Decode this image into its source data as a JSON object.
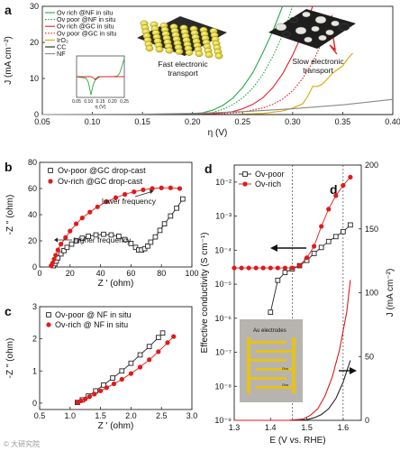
{
  "watermark": "© 大研究院",
  "chart_data": [
    {
      "id": "a",
      "panel_label": "a",
      "type": "line",
      "xlabel": "η (V)",
      "ylabel": "J (mA cm⁻²)",
      "xlim": [
        0.05,
        0.4
      ],
      "ylim": [
        0,
        30
      ],
      "xticks": [
        "0.05",
        "0.10",
        "0.15",
        "0.20",
        "0.25",
        "0.30",
        "0.35",
        "0.40"
      ],
      "yticks": [
        "0",
        "10",
        "20",
        "30"
      ],
      "legend_position": "top-left",
      "series": [
        {
          "name": "Ov rich  @NF in situ",
          "color": "#2aa84a",
          "dash": "solid",
          "x": [
            0.05,
            0.17,
            0.19,
            0.21,
            0.22,
            0.23,
            0.24,
            0.25,
            0.26,
            0.27,
            0.28,
            0.29
          ],
          "y": [
            0,
            0,
            0.1,
            0.5,
            1.2,
            2.5,
            4.5,
            7.5,
            11.5,
            17,
            23,
            30
          ]
        },
        {
          "name": "Ov poor  @NF in situ",
          "color": "#2aa84a",
          "dash": "dot",
          "x": [
            0.05,
            0.18,
            0.2,
            0.22,
            0.23,
            0.24,
            0.25,
            0.26,
            0.27,
            0.28,
            0.29,
            0.3
          ],
          "y": [
            0,
            0,
            0.1,
            0.6,
            1.4,
            2.7,
            4.6,
            7.3,
            11,
            16,
            22,
            30
          ]
        },
        {
          "name": "Ov rich  @GC in situ",
          "color": "#e02020",
          "dash": "solid",
          "x": [
            0.05,
            0.2,
            0.22,
            0.24,
            0.25,
            0.26,
            0.27,
            0.28,
            0.29,
            0.3,
            0.31,
            0.32
          ],
          "y": [
            0,
            0,
            0.2,
            0.8,
            1.6,
            2.8,
            4.6,
            7.4,
            11.3,
            16.5,
            22.7,
            30
          ]
        },
        {
          "name": "Ov poor  @GC in situ",
          "color": "#e02020",
          "dash": "dot",
          "x": [
            0.05,
            0.21,
            0.23,
            0.25,
            0.27,
            0.28,
            0.29,
            0.3,
            0.31,
            0.32,
            0.33,
            0.34
          ],
          "y": [
            0,
            0,
            0.2,
            0.7,
            1.8,
            2.8,
            4.3,
            6.6,
            10,
            14.5,
            20.5,
            28
          ]
        },
        {
          "name": "IrO₂",
          "color": "#d9a800",
          "dash": "solid",
          "x": [
            0.05,
            0.24,
            0.27,
            0.29,
            0.3,
            0.31,
            0.315,
            0.32,
            0.325,
            0.33,
            0.34,
            0.35,
            0.355,
            0.36
          ],
          "y": [
            0,
            0,
            0.3,
            1,
            1.8,
            3,
            5,
            7.8,
            7.8,
            8.5,
            11.5,
            13.5,
            15.5,
            17
          ]
        },
        {
          "name": "CC",
          "color": "#1c1c1c",
          "dash": "solid",
          "x": [
            0.05,
            0.4
          ],
          "y": [
            0,
            0
          ]
        },
        {
          "name": "NF",
          "color": "#888888",
          "dash": "solid",
          "x": [
            0.05,
            0.15,
            0.2,
            0.25,
            0.3,
            0.35,
            0.4
          ],
          "y": [
            0,
            0.1,
            0.3,
            0.8,
            1.6,
            2.7,
            4.2
          ]
        }
      ],
      "inset": {
        "xlim": [
          0.05,
          0.25
        ],
        "xticks": [
          "0.05",
          "0.10",
          "0.15",
          "0.20",
          "0.25"
        ],
        "xlabel": "η (V)",
        "series": [
          {
            "color": "#2aa84a",
            "x": [
              0.05,
              0.09,
              0.1,
              0.11,
              0.12,
              0.13,
              0.14,
              0.16,
              0.2,
              0.22,
              0.23,
              0.24,
              0.25
            ],
            "y": [
              0,
              -0.3,
              -1.2,
              -3.5,
              -1.5,
              -0.4,
              0,
              0,
              0,
              0.1,
              0.6,
              2,
              3.5
            ]
          },
          {
            "color": "#e02020",
            "x": [
              0.05,
              0.11,
              0.12,
              0.13,
              0.14,
              0.15,
              0.2,
              0.25
            ],
            "y": [
              0,
              0,
              -0.2,
              -0.6,
              -0.2,
              0,
              0,
              0
            ]
          }
        ]
      },
      "annotations": [
        "Fast electronic transport",
        "Slow electronic transport"
      ]
    },
    {
      "id": "b",
      "panel_label": "b",
      "type": "scatter",
      "xlabel": "Z ' (ohm)",
      "ylabel": "-Z \" (ohm)",
      "xlim": [
        0,
        100
      ],
      "ylim": [
        0,
        80
      ],
      "xticks": [
        "0",
        "20",
        "40",
        "60",
        "80",
        "100"
      ],
      "yticks": [
        "0",
        "20",
        "40",
        "60",
        "80"
      ],
      "legend_position": "top",
      "series": [
        {
          "name": "Ov-poor @GC drop-cast",
          "color": "#222222",
          "marker": "open-square",
          "x": [
            9,
            10,
            11,
            12,
            14,
            16,
            18,
            21,
            24,
            28,
            32,
            37,
            42,
            47,
            52,
            56,
            60,
            63,
            65,
            67,
            69,
            71,
            73,
            76,
            79,
            82,
            86,
            90,
            94
          ],
          "y": [
            1,
            2.5,
            4.5,
            7,
            10,
            12.5,
            15,
            17.5,
            20,
            22,
            23.5,
            24.5,
            25,
            24.5,
            23.5,
            21,
            18,
            15,
            13,
            13,
            14,
            16,
            19,
            23,
            28,
            33,
            39,
            45,
            52
          ]
        },
        {
          "name": "Ov-rich @GC drop-cast",
          "color": "#e01a1a",
          "marker": "filled-circle",
          "x": [
            7.5,
            8.5,
            9.5,
            10.5,
            12,
            14,
            17,
            20,
            24,
            28,
            33,
            38,
            44,
            50,
            56,
            62,
            68,
            74,
            80,
            86,
            92
          ],
          "y": [
            1,
            3,
            6,
            9,
            13,
            17.5,
            22.5,
            27.5,
            33,
            37.5,
            42,
            46,
            50,
            53,
            55.5,
            57.5,
            59,
            60,
            60.5,
            60.5,
            60
          ]
        }
      ],
      "annotations": [
        "lower frequency",
        "higher frequency"
      ]
    },
    {
      "id": "c",
      "panel_label": "c",
      "type": "scatter",
      "xlabel": "Z ' (ohm)",
      "ylabel": "-Z \" (ohm)",
      "xlim": [
        0.5,
        3.0
      ],
      "ylim": [
        -0.2,
        3
      ],
      "xticks": [
        "0.5",
        "1.0",
        "1.5",
        "2.0",
        "2.5",
        "3.0"
      ],
      "yticks": [
        "0",
        "1",
        "2",
        "3"
      ],
      "legend_position": "top-left",
      "series": [
        {
          "name": "Ov-poor @ NF in situ",
          "color": "#222222",
          "marker": "open-square",
          "x": [
            1.12,
            1.2,
            1.3,
            1.42,
            1.55,
            1.7,
            1.85,
            2.0,
            2.15,
            2.3,
            2.45,
            2.52
          ],
          "y": [
            0.02,
            0.1,
            0.22,
            0.38,
            0.56,
            0.78,
            1.0,
            1.24,
            1.5,
            1.76,
            2.04,
            2.18
          ]
        },
        {
          "name": "Ov-rich @ NF in situ",
          "color": "#e01a1a",
          "marker": "filled-circle",
          "x": [
            1.12,
            1.18,
            1.25,
            1.32,
            1.4,
            1.5,
            1.6,
            1.72,
            1.85,
            2.0,
            2.15,
            2.3,
            2.45,
            2.6,
            2.7
          ],
          "y": [
            0.02,
            0.07,
            0.13,
            0.2,
            0.28,
            0.38,
            0.48,
            0.6,
            0.74,
            0.92,
            1.12,
            1.35,
            1.6,
            1.88,
            2.07
          ]
        }
      ]
    },
    {
      "id": "d",
      "panel_label": "d",
      "panel_label_inner": "d",
      "type": "scatter",
      "xlabel": "E (V vs. RHE)",
      "ylabel": "Effective conductivity (S cm⁻¹)",
      "ylabel_right": "J (mA cm⁻²)",
      "xlim": [
        1.3,
        1.65
      ],
      "xticks": [
        "1.3",
        "1.4",
        "1.5",
        "1.6"
      ],
      "log_scale_left": true,
      "ylim_left_exp": [
        -9,
        -1.5
      ],
      "yticks_left": [
        "10⁻⁹",
        "10⁻⁸",
        "10⁻⁷",
        "10⁻⁶",
        "10⁻⁵",
        "10⁻⁴",
        "10⁻³",
        "10⁻²"
      ],
      "ylim_right": [
        0,
        200
      ],
      "yticks_right": [
        "0",
        "50",
        "100",
        "150",
        "200"
      ],
      "legend_position": "top-left",
      "vlines_x": [
        1.46,
        1.6
      ],
      "series": [
        {
          "name": "Ov-poor",
          "color": "#222222",
          "marker": "open-square",
          "axis": "left",
          "x": [
            1.4,
            1.42,
            1.44,
            1.46,
            1.48,
            1.5,
            1.52,
            1.54,
            1.56,
            1.58,
            1.6,
            1.62
          ],
          "y": [
            1.5e-06,
            1.3e-05,
            2.2e-05,
            2.8e-05,
            3.5e-05,
            5e-05,
            8e-05,
            0.00012,
            0.00018,
            0.00025,
            0.00035,
            0.00055
          ]
        },
        {
          "name": "Ov-rich",
          "color": "#e01a1a",
          "marker": "filled-circle",
          "axis": "left",
          "x": [
            1.3,
            1.32,
            1.34,
            1.36,
            1.38,
            1.4,
            1.42,
            1.44,
            1.46,
            1.48,
            1.5,
            1.52,
            1.54,
            1.56,
            1.58,
            1.6,
            1.62
          ],
          "y": [
            3e-05,
            3e-05,
            3e-05,
            3e-05,
            3e-05,
            3e-05,
            3e-05,
            3e-05,
            3e-05,
            3.5e-05,
            6e-05,
            0.00013,
            0.0005,
            0.0016,
            0.004,
            0.008,
            0.014
          ]
        },
        {
          "name": "J Ov-poor",
          "color": "#222222",
          "marker": "none",
          "axis": "right",
          "x": [
            1.3,
            1.45,
            1.5,
            1.52,
            1.54,
            1.56,
            1.58,
            1.6,
            1.62
          ],
          "y": [
            0,
            0,
            0.5,
            2,
            4.5,
            9,
            17,
            30,
            47
          ]
        },
        {
          "name": "J Ov-rich",
          "color": "#e01a1a",
          "marker": "none",
          "axis": "right",
          "x": [
            1.3,
            1.45,
            1.49,
            1.51,
            1.53,
            1.55,
            1.57,
            1.59,
            1.61,
            1.62
          ],
          "y": [
            0,
            0,
            1,
            4,
            9,
            19,
            34,
            55,
            85,
            110
          ]
        }
      ],
      "inset_text": [
        "Au electrodes",
        "Ovs",
        "Ovs"
      ]
    }
  ]
}
